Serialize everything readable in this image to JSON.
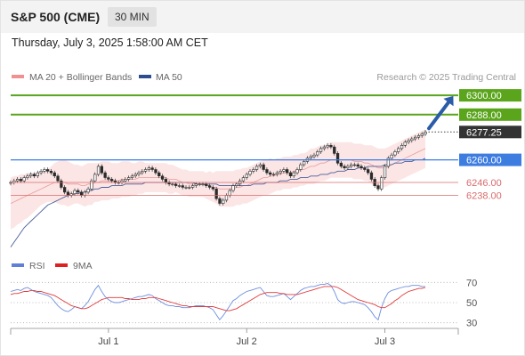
{
  "header": {
    "title": "S&P 500 (CME)",
    "interval": "30 MIN"
  },
  "timestamp": "Thursday, July 3, 2025 1:58:00 AM CET",
  "legend": {
    "bb": "MA 20 + Bollinger Bands",
    "ma50": "MA 50",
    "credit": "Research © 2025 Trading Central",
    "rsi": "RSI",
    "rsi_ma": "9MA"
  },
  "colors": {
    "resistance": "#5aa51c",
    "current": "#333333",
    "pivot": "#3d7de0",
    "support": "#d96b6b",
    "bollinger": "#fbdcdc",
    "ma50": "#4a5f9a",
    "rsi": "#6d8ede",
    "rsi_ma": "#e23a3a",
    "arrow": "#2a5ca8"
  },
  "chart_data": [
    {
      "type": "line",
      "title": "",
      "ylim": [
        6203,
        6305
      ],
      "x_ticks": [
        "Jul 1",
        "Jul 2",
        "Jul 3"
      ],
      "x_tick_index": [
        29,
        70,
        111
      ],
      "levels": [
        {
          "label": "6300.00",
          "value": 6300.0,
          "kind": "resistance"
        },
        {
          "label": "6288.00",
          "value": 6288.0,
          "kind": "resistance"
        },
        {
          "label": "6277.25",
          "value": 6277.25,
          "kind": "current"
        },
        {
          "label": "6260.00",
          "value": 6260.0,
          "kind": "pivot"
        },
        {
          "label": "6246.00",
          "value": 6246.0,
          "kind": "support"
        },
        {
          "label": "6238.00",
          "value": 6238.0,
          "kind": "support"
        }
      ],
      "price": [
        6246,
        6247,
        6248,
        6247,
        6249,
        6250,
        6251,
        6250,
        6252,
        6253,
        6254,
        6253,
        6252,
        6250,
        6247,
        6243,
        6240,
        6238,
        6239,
        6241,
        6240,
        6238,
        6240,
        6242,
        6247,
        6251,
        6256,
        6252,
        6249,
        6248,
        6247,
        6246,
        6246,
        6247,
        6248,
        6249,
        6250,
        6251,
        6252,
        6253,
        6254,
        6255,
        6254,
        6252,
        6250,
        6248,
        6246,
        6245,
        6245,
        6244,
        6244,
        6243,
        6243,
        6243,
        6244,
        6245,
        6245,
        6245,
        6244,
        6243,
        6242,
        6236,
        6233,
        6235,
        6238,
        6241,
        6244,
        6245,
        6247,
        6249,
        6251,
        6253,
        6254,
        6256,
        6257,
        6254,
        6252,
        6251,
        6251,
        6252,
        6253,
        6254,
        6252,
        6250,
        6252,
        6254,
        6257,
        6259,
        6261,
        6262,
        6263,
        6265,
        6267,
        6268,
        6269,
        6268,
        6264,
        6258,
        6256,
        6255,
        6256,
        6257,
        6257,
        6256,
        6255,
        6254,
        6252,
        6248,
        6244,
        6242,
        6249,
        6256,
        6261,
        6263,
        6265,
        6267,
        6269,
        6271,
        6272,
        6273,
        6274,
        6275,
        6276,
        6277.25
      ],
      "ma20": [
        6233,
        6234,
        6235,
        6236,
        6237,
        6238,
        6239,
        6240,
        6241,
        6242,
        6243,
        6244,
        6245,
        6246,
        6246,
        6246,
        6246,
        6245,
        6245,
        6245,
        6245,
        6244,
        6244,
        6245,
        6245,
        6246,
        6246,
        6247,
        6247,
        6247,
        6247,
        6247,
        6247,
        6248,
        6248,
        6248,
        6248,
        6248,
        6249,
        6249,
        6249,
        6249,
        6249,
        6249,
        6249,
        6249,
        6249,
        6248,
        6248,
        6248,
        6247,
        6246,
        6246,
        6245,
        6245,
        6245,
        6245,
        6245,
        6244,
        6244,
        6243,
        6243,
        6242,
        6242,
        6242,
        6242,
        6242,
        6243,
        6243,
        6244,
        6244,
        6245,
        6246,
        6247,
        6248,
        6249,
        6249,
        6250,
        6250,
        6251,
        6251,
        6252,
        6252,
        6252,
        6253,
        6253,
        6254,
        6254,
        6255,
        6256,
        6256,
        6257,
        6258,
        6258,
        6259,
        6260,
        6260,
        6260,
        6260,
        6260,
        6260,
        6260,
        6259,
        6259,
        6259,
        6258,
        6258,
        6257,
        6256,
        6255,
        6255,
        6255,
        6256,
        6257,
        6258,
        6259,
        6260,
        6261,
        6262,
        6263,
        6264,
        6265,
        6266,
        6267
      ],
      "bb_width": [
        16,
        16,
        15,
        15,
        14,
        14,
        13,
        12,
        11,
        10,
        10,
        10,
        11,
        12,
        13,
        14,
        14,
        14,
        13,
        12,
        12,
        12,
        13,
        13,
        13,
        12,
        12,
        12,
        12,
        12,
        11,
        11,
        11,
        11,
        11,
        11,
        10,
        10,
        10,
        10,
        9,
        9,
        9,
        9,
        9,
        9,
        9,
        9,
        9,
        8,
        8,
        8,
        8,
        8,
        8,
        8,
        8,
        8,
        8,
        9,
        9,
        10,
        11,
        11,
        11,
        11,
        11,
        11,
        11,
        11,
        11,
        11,
        11,
        11,
        11,
        11,
        11,
        11,
        10,
        10,
        10,
        10,
        10,
        10,
        10,
        10,
        10,
        10,
        10,
        11,
        11,
        11,
        11,
        11,
        11,
        11,
        11,
        11,
        11,
        11,
        11,
        11,
        11,
        11,
        11,
        11,
        11,
        12,
        12,
        12,
        12,
        12,
        12,
        12,
        12,
        12,
        12,
        12,
        12,
        12,
        12,
        12,
        12,
        12
      ],
      "ma50": [
        6206,
        6209,
        6212,
        6215,
        6218,
        6220,
        6222,
        6224,
        6226,
        6228,
        6230,
        6232,
        6233,
        6234,
        6235,
        6236,
        6237,
        6238,
        6238,
        6239,
        6239,
        6240,
        6240,
        6241,
        6241,
        6242,
        6242,
        6243,
        6243,
        6243,
        6244,
        6244,
        6244,
        6244,
        6245,
        6245,
        6245,
        6245,
        6245,
        6245,
        6246,
        6246,
        6246,
        6246,
        6246,
        6246,
        6246,
        6246,
        6246,
        6246,
        6246,
        6246,
        6246,
        6246,
        6246,
        6245,
        6245,
        6245,
        6245,
        6245,
        6245,
        6245,
        6244,
        6244,
        6244,
        6244,
        6244,
        6244,
        6244,
        6244,
        6244,
        6244,
        6245,
        6245,
        6245,
        6245,
        6246,
        6246,
        6246,
        6246,
        6247,
        6247,
        6247,
        6248,
        6248,
        6248,
        6249,
        6249,
        6249,
        6250,
        6250,
        6250,
        6251,
        6251,
        6251,
        6252,
        6252,
        6253,
        6253,
        6253,
        6254,
        6254,
        6254,
        6255,
        6255,
        6255,
        6256,
        6256,
        6256,
        6256,
        6256,
        6257,
        6257,
        6257,
        6258,
        6258,
        6258,
        6259,
        6259,
        6259,
        6260,
        6260,
        6260,
        6261
      ]
    },
    {
      "type": "line",
      "title": "",
      "ylim": [
        20,
        80
      ],
      "y_ticks": [
        70,
        50,
        30
      ],
      "rsi": [
        61,
        62,
        63,
        62,
        64,
        65,
        63,
        61,
        60,
        59,
        58,
        57,
        55,
        51,
        47,
        44,
        42,
        41,
        43,
        46,
        45,
        44,
        47,
        51,
        57,
        63,
        67,
        61,
        56,
        53,
        51,
        50,
        50,
        51,
        52,
        53,
        54,
        55,
        56,
        56,
        57,
        58,
        57,
        54,
        52,
        50,
        48,
        47,
        47,
        46,
        46,
        45,
        45,
        45,
        46,
        47,
        47,
        47,
        46,
        45,
        43,
        38,
        33,
        37,
        42,
        47,
        52,
        54,
        57,
        59,
        61,
        62,
        63,
        64,
        65,
        61,
        57,
        56,
        56,
        57,
        58,
        59,
        56,
        53,
        56,
        59,
        62,
        64,
        65,
        66,
        66,
        67,
        68,
        68,
        69,
        67,
        61,
        53,
        50,
        49,
        50,
        51,
        51,
        50,
        49,
        48,
        45,
        41,
        36,
        33,
        45,
        54,
        60,
        62,
        63,
        64,
        65,
        66,
        66,
        67,
        67,
        67,
        66,
        66
      ],
      "rsi_ma": [
        58,
        59,
        59,
        60,
        61,
        61,
        62,
        62,
        61,
        61,
        60,
        59,
        58,
        57,
        55,
        53,
        51,
        49,
        47,
        46,
        45,
        44,
        44,
        45,
        47,
        49,
        51,
        53,
        54,
        55,
        55,
        55,
        55,
        55,
        54,
        54,
        53,
        53,
        53,
        54,
        54,
        55,
        55,
        55,
        54,
        53,
        52,
        51,
        50,
        49,
        48,
        47,
        47,
        46,
        46,
        46,
        46,
        46,
        46,
        46,
        46,
        45,
        44,
        43,
        42,
        42,
        43,
        44,
        46,
        48,
        50,
        52,
        54,
        56,
        58,
        59,
        60,
        60,
        60,
        60,
        59,
        59,
        58,
        58,
        58,
        58,
        59,
        60,
        61,
        62,
        63,
        64,
        65,
        66,
        66,
        66,
        66,
        65,
        63,
        61,
        59,
        57,
        55,
        53,
        52,
        51,
        50,
        49,
        48,
        46,
        45,
        45,
        47,
        49,
        52,
        54,
        57,
        59,
        61,
        62,
        63,
        64,
        64,
        65
      ]
    }
  ]
}
